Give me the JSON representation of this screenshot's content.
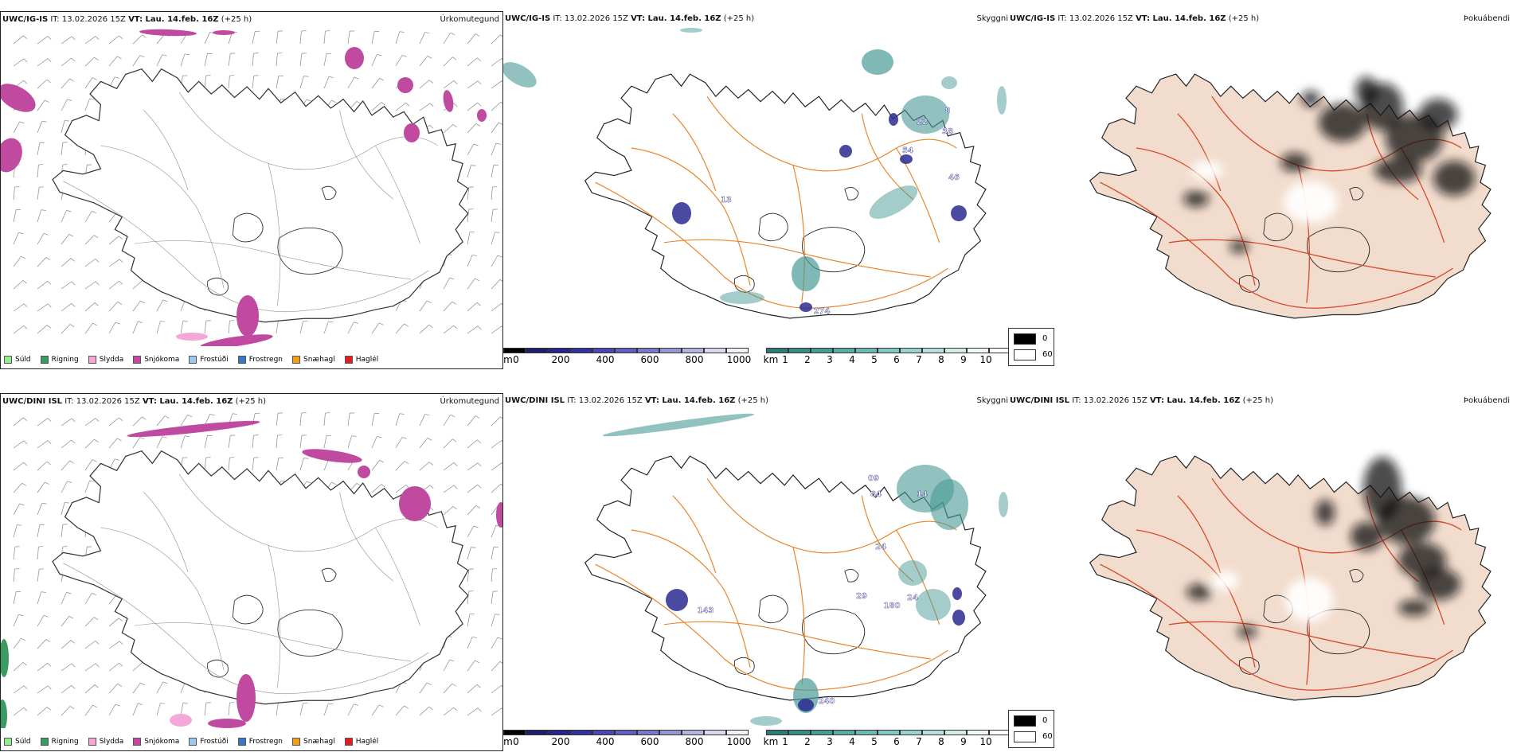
{
  "rows": [
    {
      "model": "UWC/IG-IS",
      "it_label": "IT:",
      "it_value": "13.02.2026 15Z",
      "vt_label": "VT: Lau. 14.feb. 16Z",
      "lead": "(+25 h)",
      "precip_title": "Úrkomutegund",
      "ceiling_title": "Skyggni",
      "fog_title": "Þokuábendi",
      "ceiling_labels": [
        "8",
        "22",
        "38",
        "54",
        "46",
        "13",
        "274"
      ]
    },
    {
      "model": "UWC/DINI ISL",
      "it_label": "IT:",
      "it_value": "13.02.2026 15Z",
      "vt_label": "VT: Lau. 14.feb. 16Z",
      "lead": "(+25 h)",
      "precip_title": "Úrkomutegund",
      "ceiling_title": "Skyggni",
      "fog_title": "Þokuábendi",
      "ceiling_labels": [
        "09",
        "84",
        "14",
        "24",
        "29",
        "180",
        "24",
        "143",
        "240"
      ]
    }
  ],
  "precip_legend": [
    {
      "label": "Súld",
      "color": "#90ee90"
    },
    {
      "label": "Rigning",
      "color": "#3a9a60"
    },
    {
      "label": "Slydda",
      "color": "#f4a8d8"
    },
    {
      "label": "Snjókoma",
      "color": "#c04aa0"
    },
    {
      "label": "Frostúði",
      "color": "#9ec8f0"
    },
    {
      "label": "Frostregn",
      "color": "#3a78c8"
    },
    {
      "label": "Snæhagl",
      "color": "#f0a020"
    },
    {
      "label": "Haglél",
      "color": "#e02020"
    }
  ],
  "cloudbase_bar": {
    "unit": "m",
    "ticks": [
      "0",
      "200",
      "400",
      "600",
      "800",
      "1000"
    ]
  },
  "visibility_bar": {
    "unit": "km",
    "ticks": [
      "1",
      "2",
      "3",
      "4",
      "5",
      "6",
      "7",
      "8",
      "9",
      "10"
    ]
  },
  "fog_key": {
    "low": "0",
    "high": "60"
  },
  "colors": {
    "snow": "#c04aa0",
    "rain": "#3a9a60",
    "sleet": "#f4a8d8",
    "vis_teal": "#4a9a96",
    "cloud_navy": "#2a2a90",
    "road": "#e8852a",
    "land_fog": "#f2dccd",
    "river": "#8a9ae8"
  }
}
